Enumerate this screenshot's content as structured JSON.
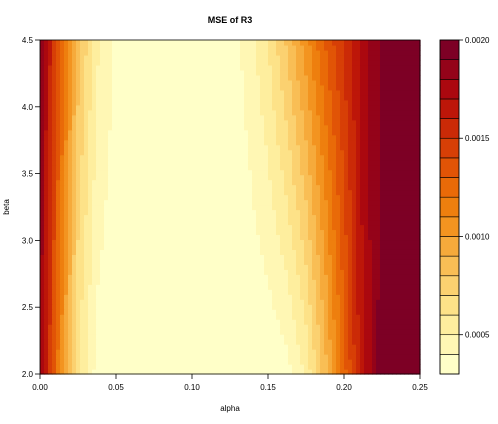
{
  "chart_data": {
    "type": "heatmap",
    "subtype": "filled-contour",
    "title": "MSE of R3",
    "xlabel": "alpha",
    "ylabel": "beta",
    "xlim": [
      0.0,
      0.25
    ],
    "ylim": [
      2.0,
      4.5
    ],
    "x_ticks": [
      "0.00",
      "0.05",
      "0.10",
      "0.15",
      "0.20",
      "0.25"
    ],
    "y_ticks": [
      "2.0",
      "2.5",
      "3.0",
      "3.5",
      "4.0",
      "4.5"
    ],
    "legend": {
      "position": "right",
      "range": [
        0.0003,
        0.002
      ],
      "tick_labels": [
        "0.0005",
        "0.0010",
        "0.0015",
        "0.0020"
      ],
      "levels": [
        0.0003,
        0.0004,
        0.0005,
        0.0006,
        0.0007,
        0.0008,
        0.0009,
        0.001,
        0.0011,
        0.0012,
        0.0013,
        0.0014,
        0.0015,
        0.0016,
        0.0017,
        0.0018,
        0.0019,
        0.002
      ],
      "colors": [
        "#FFFFC8",
        "#FFF7B4",
        "#FEEE9E",
        "#FDE288",
        "#FBD170",
        "#F9BE55",
        "#F6AA3B",
        "#F39420",
        "#EE7F0E",
        "#E96A08",
        "#E15406",
        "#D73F06",
        "#CB2A07",
        "#BD1609",
        "#AB080F",
        "#940319",
        "#7D0025"
      ]
    },
    "x": [
      0.0,
      0.0125,
      0.025,
      0.0375,
      0.05,
      0.0625,
      0.075,
      0.0875,
      0.1,
      0.1125,
      0.125,
      0.1375,
      0.15,
      0.1625,
      0.175,
      0.1875,
      0.2,
      0.2125,
      0.225,
      0.2375,
      0.25
    ],
    "y": [
      2.0,
      2.25,
      2.5,
      2.75,
      3.0,
      3.25,
      3.5,
      3.75,
      4.0,
      4.25,
      4.5
    ],
    "z_at_beta_2_0": [
      0.00185,
      0.00115,
      0.0006,
      0.00036,
      0.00032,
      0.00031,
      0.00031,
      0.00031,
      0.00031,
      0.00031,
      0.00031,
      0.00031,
      0.00032,
      0.00036,
      0.00052,
      0.00085,
      0.00125,
      0.0017,
      0.00196,
      0.0021,
      0.0021
    ],
    "z_at_beta_4_5": [
      0.0019,
      0.00135,
      0.00085,
      0.00052,
      0.00038,
      0.00033,
      0.00032,
      0.00032,
      0.00032,
      0.00032,
      0.00034,
      0.00045,
      0.0006,
      0.00082,
      0.00106,
      0.0013,
      0.00152,
      0.00174,
      0.00192,
      0.0021,
      0.0021
    ]
  }
}
